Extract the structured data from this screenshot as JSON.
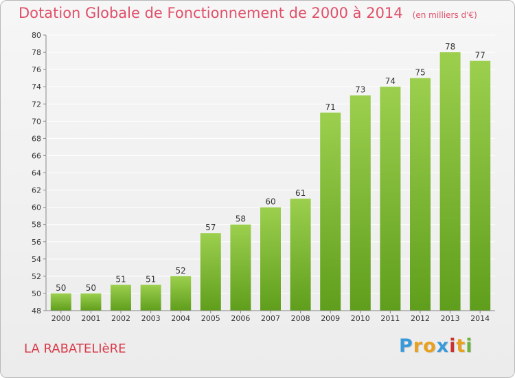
{
  "title": "Dotation Globale de Fonctionnement de 2000 à 2014",
  "title_unit": "(en milliers d'€)",
  "commune": "LA RABATELIèRE",
  "logo": {
    "letters": [
      "P",
      "r",
      "o",
      "x",
      "i",
      "t",
      "i"
    ],
    "colors": [
      "#3a9ad9",
      "#e8a020",
      "#e8a020",
      "#3a9ad9",
      "#c83232",
      "#e8a020",
      "#6ab43a"
    ]
  },
  "colors": {
    "title": "#e0506a",
    "bar_top": "#9ccf4e",
    "bar_bottom": "#5f9e1c",
    "grid": "#ffffff"
  },
  "chart_data": {
    "type": "bar",
    "categories": [
      "2000",
      "2001",
      "2002",
      "2003",
      "2004",
      "2005",
      "2006",
      "2007",
      "2008",
      "2009",
      "2010",
      "2011",
      "2012",
      "2013",
      "2014"
    ],
    "values": [
      50,
      50,
      51,
      51,
      52,
      57,
      58,
      60,
      61,
      71,
      73,
      74,
      75,
      78,
      77
    ],
    "ylim": [
      48,
      80
    ],
    "yticks": [
      48,
      50,
      52,
      54,
      56,
      58,
      60,
      62,
      64,
      66,
      68,
      70,
      72,
      74,
      76,
      78,
      80
    ],
    "grid": true,
    "title": "Dotation Globale de Fonctionnement de 2000 à 2014",
    "xlabel": "",
    "ylabel": ""
  }
}
